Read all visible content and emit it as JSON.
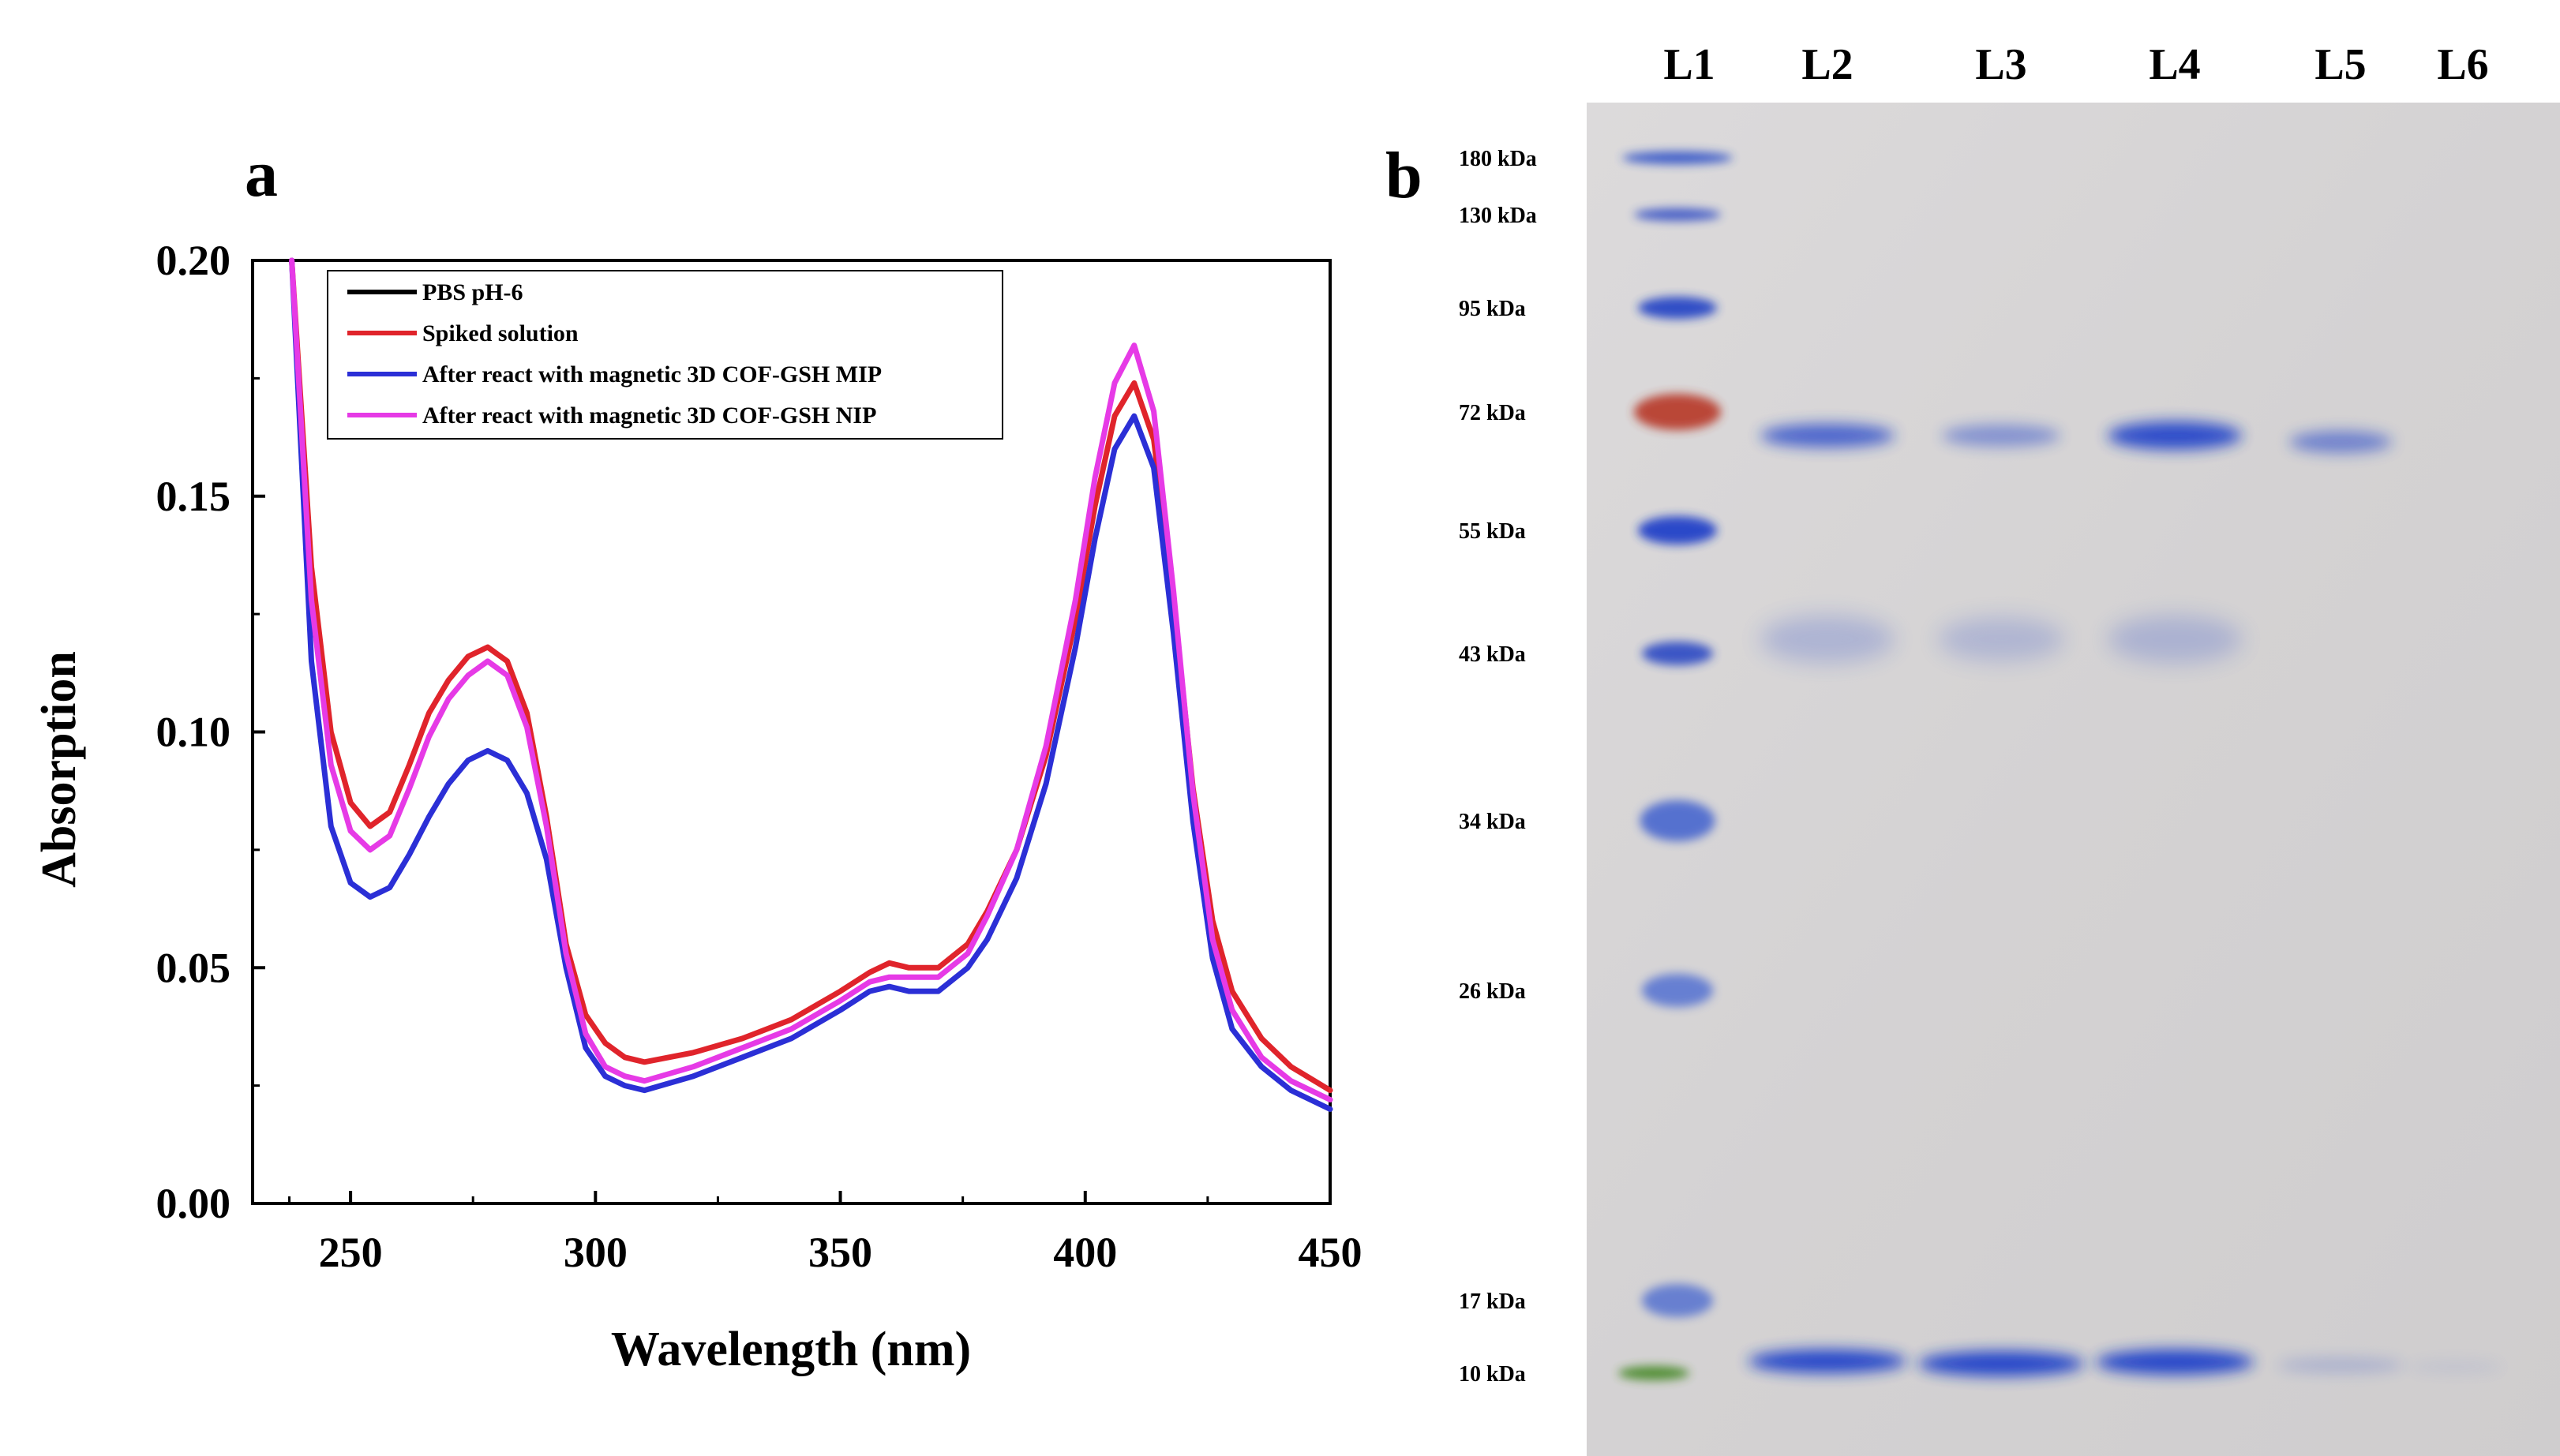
{
  "panel_a": {
    "letter": "a",
    "xlabel": "Wavelength (nm)",
    "ylabel": "Absorption",
    "xlim": [
      230,
      450
    ],
    "ylim": [
      0,
      0.2
    ],
    "xticks": [
      250,
      300,
      350,
      400,
      450
    ],
    "yticks": [
      "0.00",
      "0.05",
      "0.10",
      "0.15",
      "0.20"
    ],
    "yticks_values": [
      0,
      0.05,
      0.1,
      0.15,
      0.2
    ]
  },
  "chart_data": [
    {
      "type": "line",
      "title": "",
      "xlabel": "Wavelength (nm)",
      "ylabel": "Absorption",
      "xlim": [
        230,
        450
      ],
      "ylim": [
        0,
        0.2
      ],
      "legend_position": "top-left",
      "series": [
        {
          "name": "PBS pH-6",
          "color": "#000000",
          "x": [
            232,
            450
          ],
          "y": [
            0.0,
            0.0
          ]
        },
        {
          "name": "Spiked solution",
          "color": "#e0242b",
          "x": [
            238,
            242,
            246,
            250,
            254,
            258,
            262,
            266,
            270,
            274,
            278,
            282,
            286,
            290,
            294,
            298,
            302,
            306,
            310,
            320,
            330,
            340,
            350,
            356,
            360,
            364,
            370,
            376,
            380,
            386,
            392,
            398,
            402,
            406,
            410,
            414,
            418,
            422,
            426,
            430,
            436,
            442,
            450
          ],
          "y": [
            0.2,
            0.135,
            0.1,
            0.085,
            0.08,
            0.083,
            0.093,
            0.104,
            0.111,
            0.116,
            0.118,
            0.115,
            0.104,
            0.082,
            0.055,
            0.04,
            0.034,
            0.031,
            0.03,
            0.032,
            0.035,
            0.039,
            0.045,
            0.049,
            0.051,
            0.05,
            0.05,
            0.055,
            0.062,
            0.075,
            0.095,
            0.124,
            0.148,
            0.167,
            0.174,
            0.162,
            0.128,
            0.088,
            0.06,
            0.045,
            0.035,
            0.029,
            0.024
          ]
        },
        {
          "name": "After react with magnetic 3D COF-GSH MIP",
          "color": "#2b2fd6",
          "x": [
            238,
            242,
            246,
            250,
            254,
            258,
            262,
            266,
            270,
            274,
            278,
            282,
            286,
            290,
            294,
            298,
            302,
            306,
            310,
            320,
            330,
            340,
            350,
            356,
            360,
            364,
            370,
            376,
            380,
            386,
            392,
            398,
            402,
            406,
            410,
            414,
            418,
            422,
            426,
            430,
            436,
            442,
            450
          ],
          "y": [
            0.2,
            0.115,
            0.08,
            0.068,
            0.065,
            0.067,
            0.074,
            0.082,
            0.089,
            0.094,
            0.096,
            0.094,
            0.087,
            0.073,
            0.05,
            0.033,
            0.027,
            0.025,
            0.024,
            0.027,
            0.031,
            0.035,
            0.041,
            0.045,
            0.046,
            0.045,
            0.045,
            0.05,
            0.056,
            0.069,
            0.089,
            0.118,
            0.141,
            0.16,
            0.167,
            0.156,
            0.121,
            0.081,
            0.052,
            0.037,
            0.029,
            0.024,
            0.02
          ]
        },
        {
          "name": "After react with magnetic 3D COF-GSH NIP",
          "color": "#e63ae6",
          "x": [
            238,
            242,
            246,
            250,
            254,
            258,
            262,
            266,
            270,
            274,
            278,
            282,
            286,
            290,
            294,
            298,
            302,
            306,
            310,
            320,
            330,
            340,
            350,
            356,
            360,
            364,
            370,
            376,
            380,
            386,
            392,
            398,
            402,
            406,
            410,
            414,
            418,
            422,
            426,
            430,
            436,
            442,
            450
          ],
          "y": [
            0.2,
            0.128,
            0.093,
            0.079,
            0.075,
            0.078,
            0.088,
            0.099,
            0.107,
            0.112,
            0.115,
            0.112,
            0.101,
            0.08,
            0.053,
            0.036,
            0.029,
            0.027,
            0.026,
            0.029,
            0.033,
            0.037,
            0.043,
            0.047,
            0.048,
            0.048,
            0.048,
            0.053,
            0.061,
            0.075,
            0.097,
            0.128,
            0.154,
            0.174,
            0.182,
            0.168,
            0.13,
            0.087,
            0.056,
            0.041,
            0.031,
            0.026,
            0.022
          ]
        }
      ]
    }
  ],
  "panel_b": {
    "letter": "b",
    "lanes": [
      "L1",
      "L2",
      "L3",
      "L4",
      "L5",
      "L6"
    ],
    "markers": [
      "180 kDa",
      "130 kDa",
      "95 kDa",
      "72 kDa",
      "55 kDa",
      "43 kDa",
      "34 kDa",
      "26 kDa",
      "17 kDa",
      "10 kDa"
    ]
  },
  "colors": {
    "gel_background": "#d6d4d4",
    "band_blue": "#1d3fc9",
    "marker_red": "#b83a2a",
    "marker_green": "#4a8a2a"
  }
}
